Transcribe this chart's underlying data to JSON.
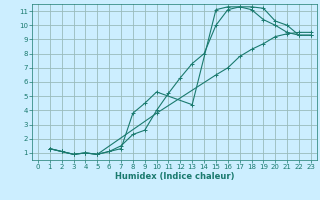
{
  "title": "",
  "xlabel": "Humidex (Indice chaleur)",
  "bg_color": "#cceeff",
  "line_color": "#1a7a6e",
  "grid_color": "#99bbbb",
  "xlim": [
    -0.5,
    23.5
  ],
  "ylim": [
    0.5,
    11.5
  ],
  "xticks": [
    0,
    1,
    2,
    3,
    4,
    5,
    6,
    7,
    8,
    9,
    10,
    11,
    12,
    13,
    14,
    15,
    16,
    17,
    18,
    19,
    20,
    21,
    22,
    23
  ],
  "yticks": [
    1,
    2,
    3,
    4,
    5,
    6,
    7,
    8,
    9,
    10,
    11
  ],
  "line1_x": [
    1,
    2,
    3,
    4,
    5,
    6,
    7,
    8,
    9,
    10,
    11,
    12,
    13,
    14,
    15,
    16,
    17,
    18,
    19,
    20,
    21,
    22,
    23
  ],
  "line1_y": [
    1.3,
    1.1,
    0.9,
    1.0,
    0.9,
    1.1,
    1.5,
    2.3,
    2.6,
    4.0,
    5.2,
    6.3,
    7.3,
    8.0,
    10.0,
    11.1,
    11.3,
    11.3,
    11.2,
    10.3,
    10.0,
    9.3,
    9.3
  ],
  "line2_x": [
    1,
    2,
    3,
    4,
    5,
    6,
    7,
    8,
    9,
    10,
    13,
    15,
    16,
    17,
    18,
    19,
    20,
    21,
    22,
    23
  ],
  "line2_y": [
    1.3,
    1.1,
    0.9,
    1.0,
    0.9,
    1.1,
    1.3,
    3.8,
    4.5,
    5.3,
    4.4,
    11.1,
    11.3,
    11.3,
    11.1,
    10.4,
    10.0,
    9.5,
    9.3,
    9.3
  ],
  "line3_x": [
    1,
    2,
    3,
    4,
    5,
    10,
    15,
    16,
    17,
    18,
    19,
    20,
    21,
    22,
    23
  ],
  "line3_y": [
    1.3,
    1.1,
    0.9,
    1.0,
    0.9,
    3.8,
    6.5,
    7.0,
    7.8,
    8.3,
    8.7,
    9.2,
    9.4,
    9.5,
    9.5
  ]
}
